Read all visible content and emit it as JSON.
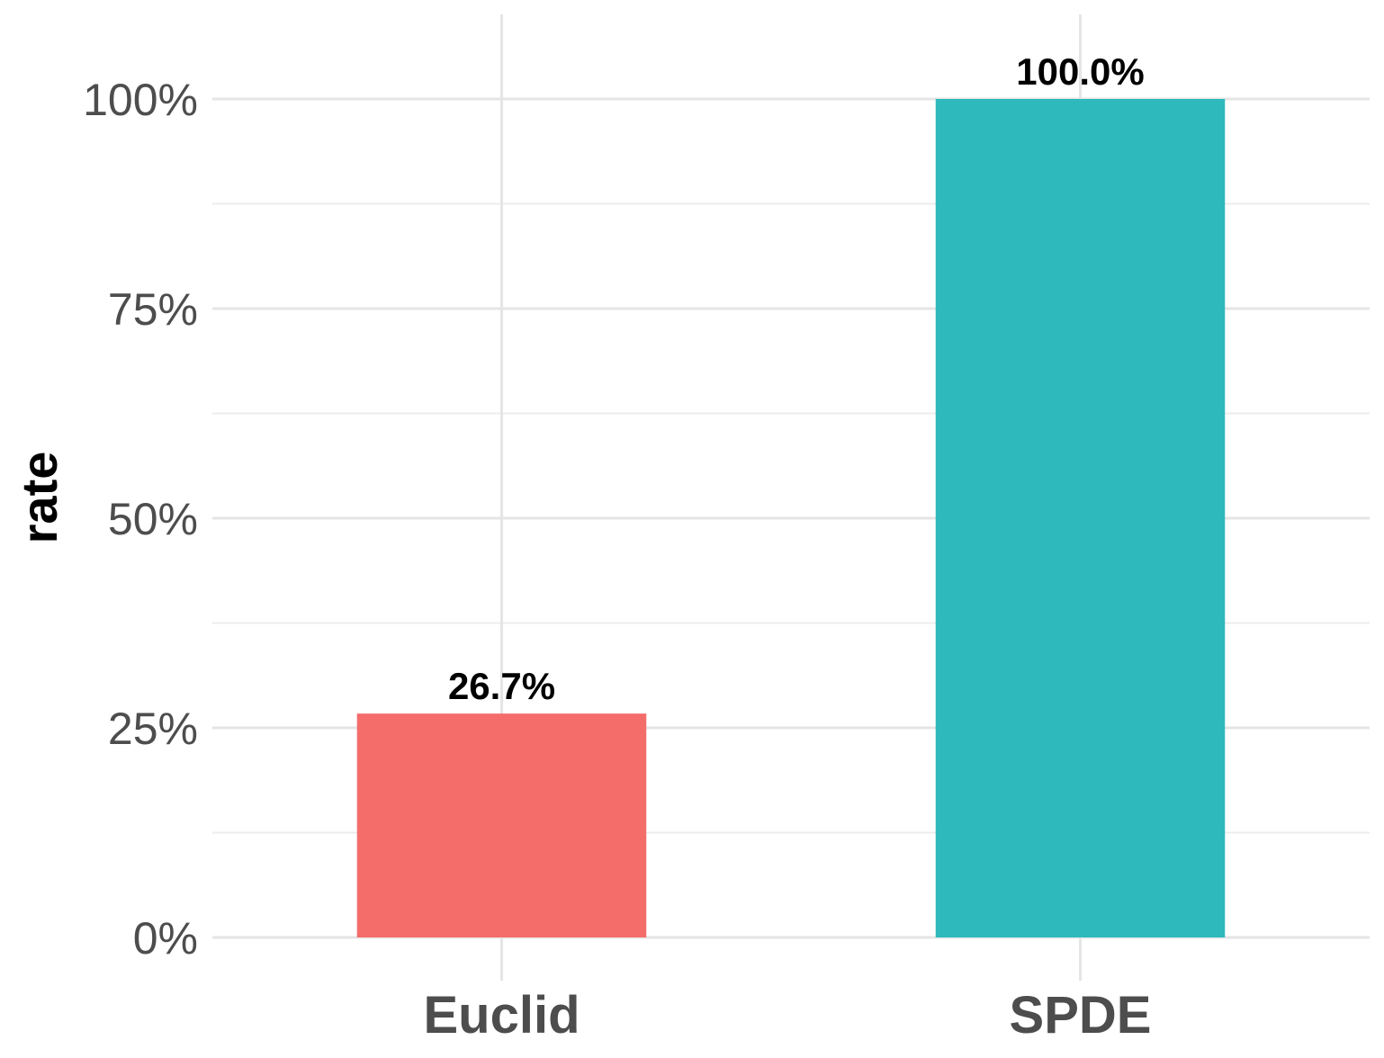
{
  "chart_data": {
    "type": "bar",
    "categories": [
      "Euclid",
      "SPDE"
    ],
    "values": [
      26.7,
      100.0
    ],
    "data_labels": [
      "26.7%",
      "100.0%"
    ],
    "colors": [
      "#F46D6A",
      "#2EBABC"
    ],
    "title": "",
    "xlabel": "",
    "ylabel": "rate",
    "ylim": [
      0,
      100
    ],
    "yticks": [
      0,
      25,
      50,
      75,
      100
    ],
    "ytick_labels": [
      "0%",
      "25%",
      "50%",
      "75%",
      "100%"
    ],
    "grid": true,
    "legend": "none"
  }
}
